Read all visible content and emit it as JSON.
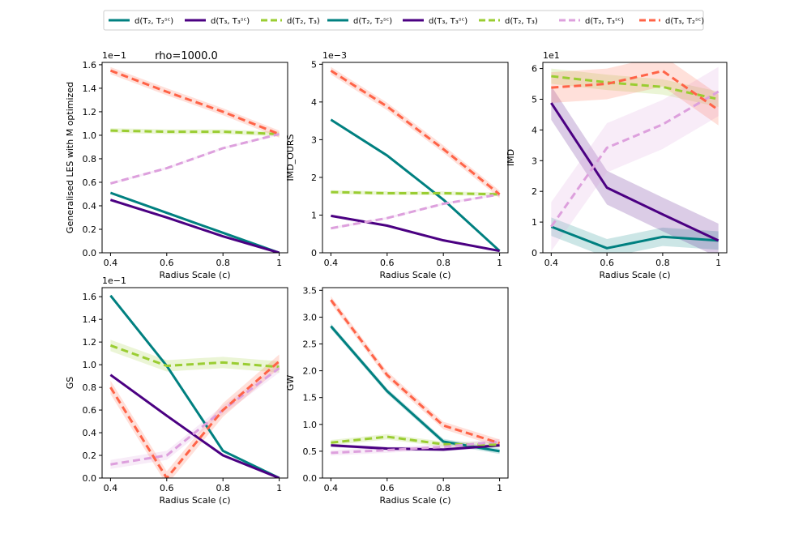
{
  "figure": {
    "suptitle": "rho=1000.0",
    "legend": {
      "placement": "top-center",
      "entries": [
        {
          "label": "d(T₂, T₂ˢᶜ)",
          "color": "#008080",
          "dash": "solid"
        },
        {
          "label": "d(T₃, T₃ˢᶜ)",
          "color": "#4b0082",
          "dash": "solid"
        },
        {
          "label": "d(T₂, T₃)",
          "color": "#9acd32",
          "dash": "dashed"
        },
        {
          "label": "d(T₂, T₂ˢᶜ)",
          "color": "#008080",
          "dash": "solid"
        },
        {
          "label": "d(T₃, T₃ˢᶜ)",
          "color": "#4b0082",
          "dash": "solid"
        },
        {
          "label": "d(T₂, T₃)",
          "color": "#9acd32",
          "dash": "dashed"
        },
        {
          "label": "d(T₂, T₃ˢᶜ)",
          "color": "#dda0dd",
          "dash": "dashed"
        },
        {
          "label": "d(T₃, T₂ˢᶜ)",
          "color": "#ff6347",
          "dash": "dashed"
        }
      ]
    }
  },
  "chart_data": [
    {
      "type": "line",
      "ylabel": "Generalised LES with M optimized",
      "xlabel": "Radius Scale (c)",
      "sci_label": "1e−1",
      "xlim": [
        0.37,
        1.03
      ],
      "ylim": [
        0.0,
        1.62
      ],
      "xticks": [
        "0.4",
        "0.6",
        "0.8",
        "1"
      ],
      "yticks": [
        "0.0",
        "0.2",
        "0.4",
        "0.6",
        "0.8",
        "1.0",
        "1.2",
        "1.4",
        "1.6"
      ],
      "x": [
        0.4,
        0.6,
        0.8,
        1.0
      ],
      "series": [
        {
          "name": "d(T2,T2Sc)",
          "color": "#008080",
          "dash": "solid",
          "values": [
            0.51,
            0.34,
            0.17,
            0.0
          ],
          "band": 0.01
        },
        {
          "name": "d(T3,T3Sc)",
          "color": "#4b0082",
          "dash": "solid",
          "values": [
            0.45,
            0.3,
            0.14,
            0.0
          ],
          "band": 0.01
        },
        {
          "name": "d(T2,T3)",
          "color": "#9acd32",
          "dash": "dashed",
          "values": [
            1.04,
            1.03,
            1.03,
            1.01
          ],
          "band": 0.02
        },
        {
          "name": "d(T2,T3Sc)",
          "color": "#dda0dd",
          "dash": "dashed",
          "values": [
            0.59,
            0.72,
            0.89,
            1.01
          ],
          "band": 0.01
        },
        {
          "name": "d(T3,T2Sc)",
          "color": "#ff6347",
          "dash": "dashed",
          "values": [
            1.55,
            1.37,
            1.2,
            1.01
          ],
          "band": 0.03
        }
      ]
    },
    {
      "type": "line",
      "ylabel": "IMD_OURS",
      "xlabel": "Radius Scale (c)",
      "sci_label": "1e−3",
      "xlim": [
        0.37,
        1.03
      ],
      "ylim": [
        0.0,
        5.05
      ],
      "xticks": [
        "0.4",
        "0.6",
        "0.8",
        "1"
      ],
      "yticks": [
        "0",
        "1",
        "2",
        "3",
        "4",
        "5"
      ],
      "x": [
        0.4,
        0.6,
        0.8,
        1.0
      ],
      "series": [
        {
          "name": "d(T2,T2Sc)",
          "color": "#008080",
          "dash": "solid",
          "values": [
            3.53,
            2.58,
            1.41,
            0.05
          ],
          "band": 0.03
        },
        {
          "name": "d(T3,T3Sc)",
          "color": "#4b0082",
          "dash": "solid",
          "values": [
            0.98,
            0.72,
            0.33,
            0.05
          ],
          "band": 0.03
        },
        {
          "name": "d(T2,T3)",
          "color": "#9acd32",
          "dash": "dashed",
          "values": [
            1.61,
            1.58,
            1.58,
            1.55
          ],
          "band": 0.05
        },
        {
          "name": "d(T2,T3Sc)",
          "color": "#dda0dd",
          "dash": "dashed",
          "values": [
            0.65,
            0.92,
            1.3,
            1.55
          ],
          "band": 0.03
        },
        {
          "name": "d(T3,T2Sc)",
          "color": "#ff6347",
          "dash": "dashed",
          "values": [
            4.83,
            3.88,
            2.75,
            1.55
          ],
          "band": 0.1
        }
      ]
    },
    {
      "type": "line",
      "ylabel": "IMD",
      "xlabel": "Radius Scale (c)",
      "sci_label": "1e1",
      "xlim": [
        0.37,
        1.03
      ],
      "ylim": [
        0.0,
        6.2
      ],
      "xticks": [
        "0.4",
        "0.6",
        "0.8",
        "1"
      ],
      "yticks": [
        "0",
        "1",
        "2",
        "3",
        "4",
        "5",
        "6"
      ],
      "x": [
        0.4,
        0.6,
        0.8,
        1.0
      ],
      "series": [
        {
          "name": "d(T2,T2Sc)",
          "color": "#008080",
          "dash": "solid",
          "values": [
            0.85,
            0.15,
            0.52,
            0.4
          ],
          "band": 0.3
        },
        {
          "name": "d(T3,T3Sc)",
          "color": "#4b0082",
          "dash": "solid",
          "values": [
            4.88,
            2.12,
            1.25,
            0.4
          ],
          "band": 0.55
        },
        {
          "name": "d(T2,T3)",
          "color": "#9acd32",
          "dash": "dashed",
          "values": [
            5.75,
            5.55,
            5.4,
            5.0
          ],
          "band": 0.25
        },
        {
          "name": "d(T2,T3Sc)",
          "color": "#dda0dd",
          "dash": "dashed",
          "values": [
            0.85,
            3.42,
            4.18,
            5.25
          ],
          "band": 0.8
        },
        {
          "name": "d(T3,T2Sc)",
          "color": "#ff6347",
          "dash": "dashed",
          "values": [
            5.38,
            5.5,
            5.92,
            4.65
          ],
          "band": 0.5
        }
      ]
    },
    {
      "type": "line",
      "ylabel": "GS",
      "xlabel": "Radius Scale (c)",
      "sci_label": "1e−1",
      "xlim": [
        0.37,
        1.03
      ],
      "ylim": [
        0.0,
        1.68
      ],
      "xticks": [
        "0.4",
        "0.6",
        "0.8",
        "1"
      ],
      "yticks": [
        "0.0",
        "0.2",
        "0.4",
        "0.6",
        "0.8",
        "1.0",
        "1.2",
        "1.4",
        "1.6"
      ],
      "x": [
        0.4,
        0.6,
        0.8,
        1.0
      ],
      "series": [
        {
          "name": "d(T2,T2Sc)",
          "color": "#008080",
          "dash": "solid",
          "values": [
            1.61,
            0.99,
            0.24,
            0.0
          ],
          "band": 0.01
        },
        {
          "name": "d(T3,T3Sc)",
          "color": "#4b0082",
          "dash": "solid",
          "values": [
            0.91,
            0.55,
            0.2,
            0.0
          ],
          "band": 0.01
        },
        {
          "name": "d(T2,T3)",
          "color": "#9acd32",
          "dash": "dashed",
          "values": [
            1.17,
            0.99,
            1.02,
            0.98
          ],
          "band": 0.05
        },
        {
          "name": "d(T2,T3Sc)",
          "color": "#dda0dd",
          "dash": "dashed",
          "values": [
            0.12,
            0.2,
            0.6,
            0.97
          ],
          "band": 0.04
        },
        {
          "name": "d(T3,T2Sc)",
          "color": "#ff6347",
          "dash": "dashed",
          "values": [
            0.8,
            0.0,
            0.6,
            1.03
          ],
          "band": 0.06
        }
      ]
    },
    {
      "type": "line",
      "ylabel": "GW",
      "xlabel": "Radius Scale (c)",
      "sci_label": "",
      "xlim": [
        0.37,
        1.03
      ],
      "ylim": [
        0.0,
        3.55
      ],
      "xticks": [
        "0.4",
        "0.6",
        "0.8",
        "1"
      ],
      "yticks": [
        "0.0",
        "0.5",
        "1.0",
        "1.5",
        "2.0",
        "2.5",
        "3.0",
        "3.5"
      ],
      "x": [
        0.4,
        0.6,
        0.8,
        1.0
      ],
      "series": [
        {
          "name": "d(T2,T2Sc)",
          "color": "#008080",
          "dash": "solid",
          "values": [
            2.83,
            1.62,
            0.68,
            0.5
          ],
          "band": 0.05
        },
        {
          "name": "d(T3,T3Sc)",
          "color": "#4b0082",
          "dash": "solid",
          "values": [
            0.61,
            0.55,
            0.53,
            0.61
          ],
          "band": 0.03
        },
        {
          "name": "d(T2,T3)",
          "color": "#9acd32",
          "dash": "dashed",
          "values": [
            0.66,
            0.77,
            0.63,
            0.62
          ],
          "band": 0.05
        },
        {
          "name": "d(T2,T3Sc)",
          "color": "#dda0dd",
          "dash": "dashed",
          "values": [
            0.47,
            0.52,
            0.58,
            0.68
          ],
          "band": 0.05
        },
        {
          "name": "d(T3,T2Sc)",
          "color": "#ff6347",
          "dash": "dashed",
          "values": [
            3.32,
            1.92,
            0.98,
            0.65
          ],
          "band": 0.07
        }
      ]
    }
  ]
}
